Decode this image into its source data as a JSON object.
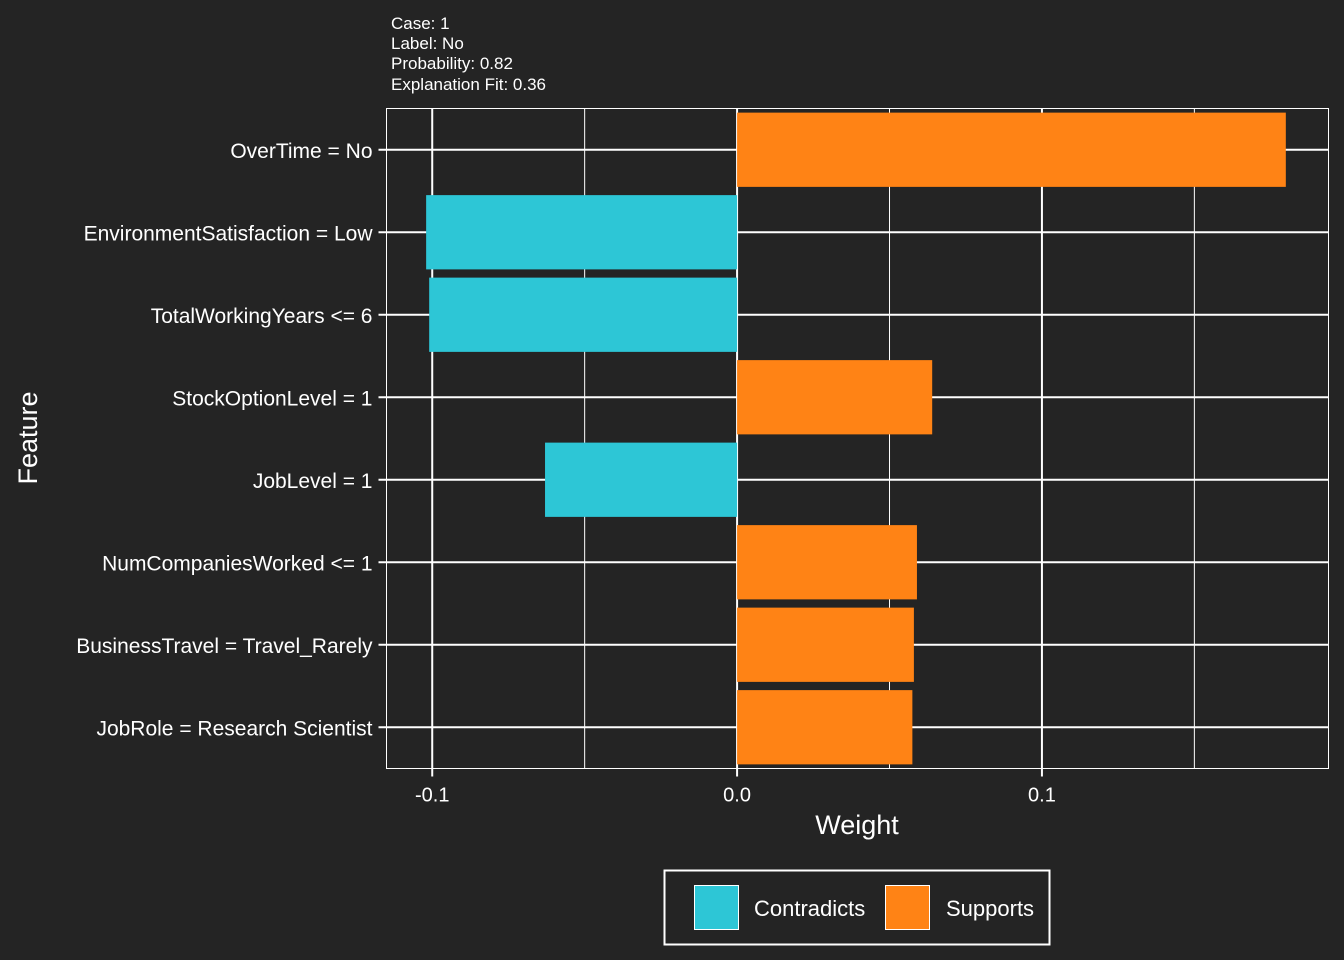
{
  "meta": {
    "case_line": "Case:  1",
    "label_line": "Label:  No",
    "probability_line": "Probability:  0.82",
    "fit_line": "Explanation Fit:  0.36"
  },
  "colors": {
    "background": "#242424",
    "contradicts": "#2DC6D6",
    "supports": "#FF8315",
    "grid": "#ffffff",
    "text": "#ffffff"
  },
  "chart_data": {
    "type": "bar",
    "orientation": "horizontal",
    "xlabel": "Weight",
    "ylabel": "Feature",
    "xlim": [
      -0.115,
      0.194
    ],
    "x_ticks": [
      -0.1,
      0.0,
      0.1
    ],
    "x_tick_labels": [
      "-0.1",
      "0.0",
      "0.1"
    ],
    "grid": true,
    "legend_position": "bottom",
    "categories": [
      "OverTime = No",
      "EnvironmentSatisfaction = Low",
      "TotalWorkingYears <= 6",
      "StockOptionLevel = 1",
      "JobLevel = 1",
      "NumCompaniesWorked <= 1",
      "BusinessTravel = Travel_Rarely",
      "JobRole = Research Scientist"
    ],
    "values": [
      0.18,
      -0.102,
      -0.101,
      0.064,
      -0.063,
      0.059,
      0.058,
      0.0575
    ],
    "groups": [
      "Supports",
      "Contradicts",
      "Contradicts",
      "Supports",
      "Contradicts",
      "Supports",
      "Supports",
      "Supports"
    ],
    "series": [
      {
        "name": "Contradicts",
        "color": "#2DC6D6"
      },
      {
        "name": "Supports",
        "color": "#FF8315"
      }
    ]
  }
}
